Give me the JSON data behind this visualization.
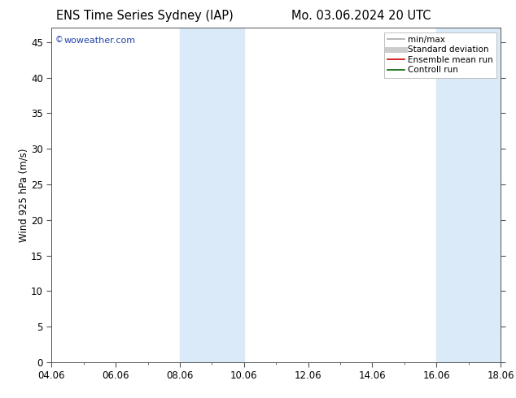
{
  "title_left": "ENS Time Series Sydney (IAP)",
  "title_right": "Mo. 03.06.2024 20 UTC",
  "ylabel": "Wind 925 hPa (m/s)",
  "ylim": [
    0,
    47
  ],
  "yticks": [
    0,
    5,
    10,
    15,
    20,
    25,
    30,
    35,
    40,
    45
  ],
  "xtick_labels": [
    "04.06",
    "06.06",
    "08.06",
    "10.06",
    "12.06",
    "14.06",
    "16.06",
    "18.06"
  ],
  "xtick_positions": [
    0,
    2,
    4,
    6,
    8,
    10,
    12,
    14
  ],
  "xlim": [
    0,
    14
  ],
  "shaded_regions": [
    {
      "xstart": 4,
      "xend": 6
    },
    {
      "xstart": 12,
      "xend": 14
    }
  ],
  "shaded_color": "#daeaf8",
  "bg_color": "#ffffff",
  "watermark_text": "woweather.com",
  "watermark_color": "#2244aa",
  "legend_items": [
    {
      "label": "min/max",
      "color": "#aaaaaa",
      "lw": 1.2
    },
    {
      "label": "Standard deviation",
      "color": "#cccccc",
      "lw": 5
    },
    {
      "label": "Ensemble mean run",
      "color": "#cc0000",
      "lw": 1.2
    },
    {
      "label": "Controll run",
      "color": "#006600",
      "lw": 1.2
    }
  ],
  "title_fontsize": 10.5,
  "tick_fontsize": 8.5,
  "ylabel_fontsize": 8.5,
  "legend_fontsize": 7.5,
  "minor_xtick_positions": [
    1,
    3,
    5,
    7,
    9,
    11,
    13
  ]
}
